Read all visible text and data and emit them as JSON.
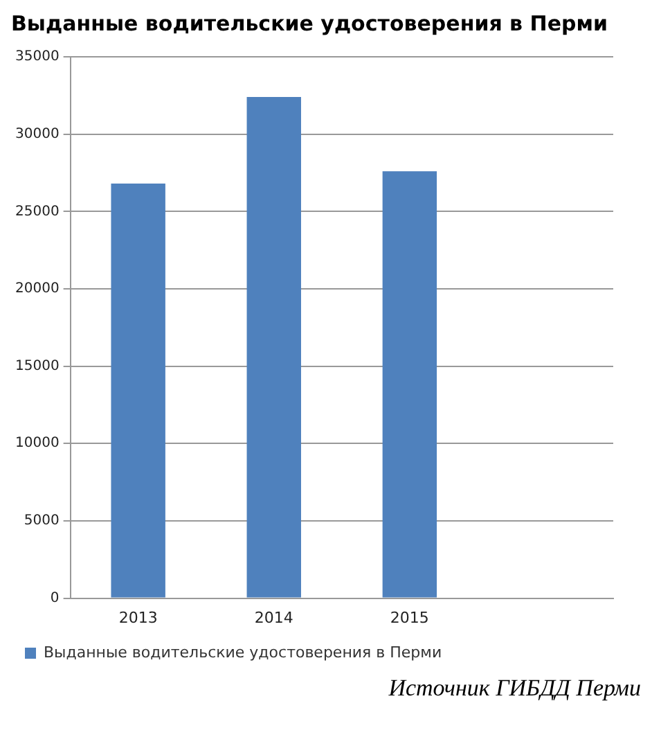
{
  "chart_data": {
    "type": "bar",
    "title": "Выданные водительские удостоверения в Перми",
    "categories": [
      "2013",
      "2014",
      "2015",
      null
    ],
    "series": [
      {
        "name": "Выданные водительские удостоверения в Перми",
        "color": "#4f81bd",
        "values": [
          26800,
          32400,
          27600,
          null
        ]
      }
    ],
    "ylim": [
      0,
      35000
    ],
    "yticks": [
      0,
      5000,
      10000,
      15000,
      20000,
      25000,
      30000,
      35000
    ],
    "grid": "y",
    "legend": "bottom",
    "annotations": [
      "Источник ГИБДД Перми"
    ]
  }
}
